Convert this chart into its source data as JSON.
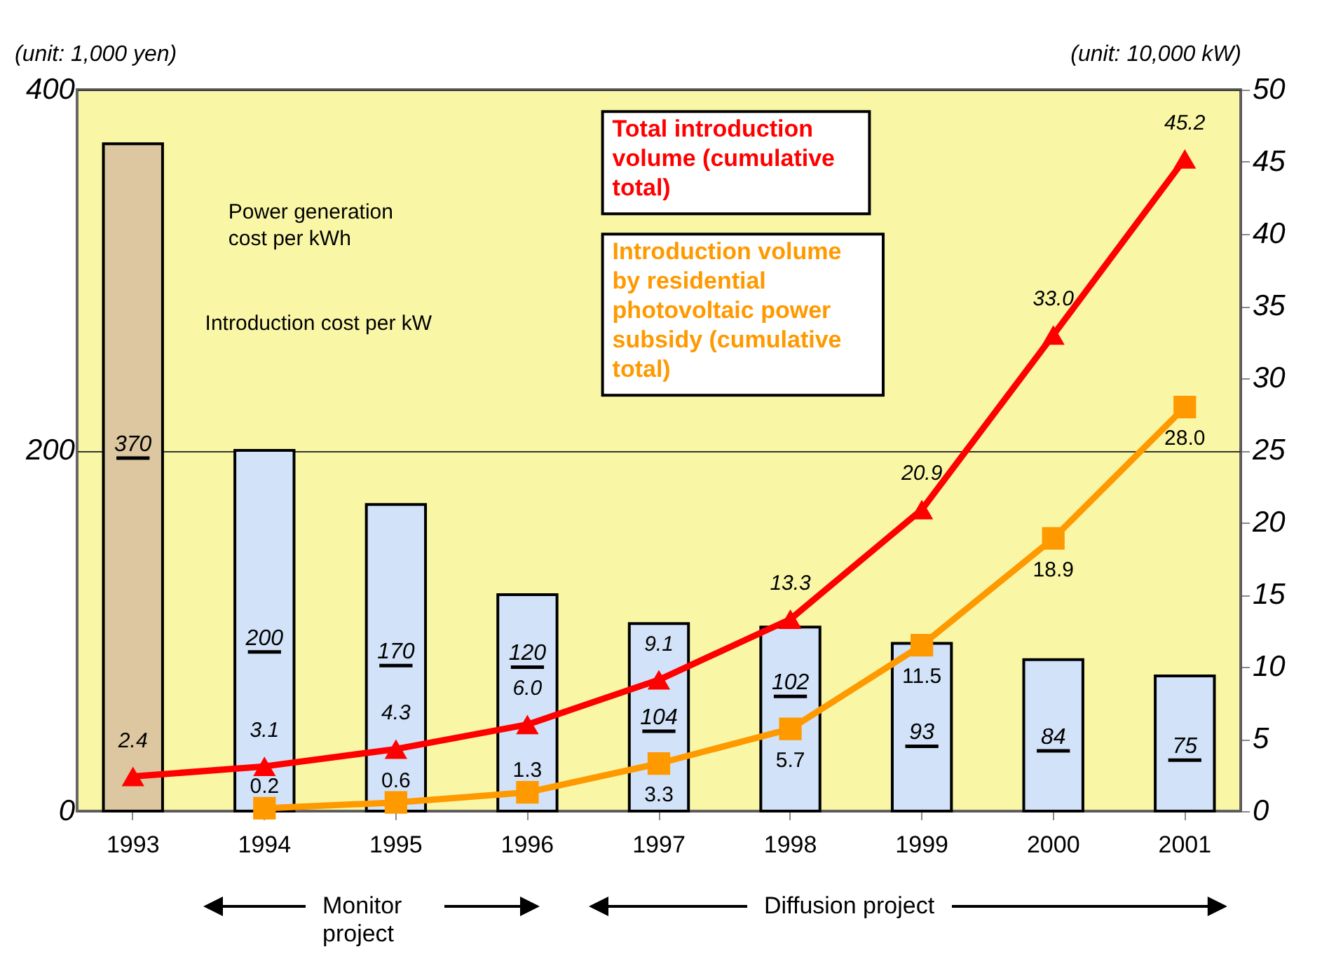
{
  "chart_data": {
    "type": "bar",
    "ylabel": "(unit: 1,000 yen)",
    "y2label": "(unit: 10,000 kW)",
    "categories": [
      "1993",
      "1994",
      "1995",
      "1996",
      "1997",
      "1998",
      "1999",
      "2000",
      "2001"
    ],
    "ylim": [
      0,
      400
    ],
    "yticks": [
      0,
      200,
      400
    ],
    "y2lim": [
      0,
      50
    ],
    "y2ticks": [
      0,
      5,
      10,
      15,
      20,
      25,
      30,
      35,
      40,
      45,
      50
    ],
    "grid": "y",
    "annotations": [
      "Power generation cost per kWh",
      "Introduction cost per kW",
      "Monitor project",
      "Diffusion project"
    ],
    "series": [
      {
        "colors": [
          "#dcc7a0",
          "#d2e2f8",
          "#d2e2f8",
          "#d2e2f8",
          "#d2e2f8",
          "#d2e2f8",
          "#d2e2f8",
          "#d2e2f8",
          "#d2e2f8"
        ],
        "values": [
          370,
          200,
          170,
          120,
          104,
          102,
          93,
          84,
          75
        ],
        "value_labels": [
          "370",
          "200",
          "170",
          "120",
          "104",
          "102",
          "93",
          "84",
          "75"
        ]
      },
      {
        "type": "line",
        "name": "Total introduction volume (cumulative total)",
        "color": "#ff0000",
        "axis": "y2",
        "marker": "triangle",
        "values": [
          2.4,
          3.1,
          4.3,
          6.0,
          9.1,
          13.3,
          20.9,
          33.0,
          45.2
        ],
        "value_labels": [
          "2.4",
          "3.1",
          "4.3",
          "6.0",
          "9.1",
          "13.3",
          "20.9",
          "33.0",
          "45.2"
        ]
      },
      {
        "type": "line",
        "name": "Introduction volume by residential photovoltaic power subsidy (cumulative total)",
        "color": "#ff9900",
        "axis": "y2",
        "marker": "square",
        "values": [
          null,
          0.2,
          0.6,
          1.3,
          3.3,
          5.7,
          11.5,
          18.9,
          28.0
        ],
        "value_labels": [
          null,
          "0.2",
          "0.6",
          "1.3",
          "3.3",
          "5.7",
          "11.5",
          "18.9",
          "28.0"
        ]
      }
    ]
  }
}
